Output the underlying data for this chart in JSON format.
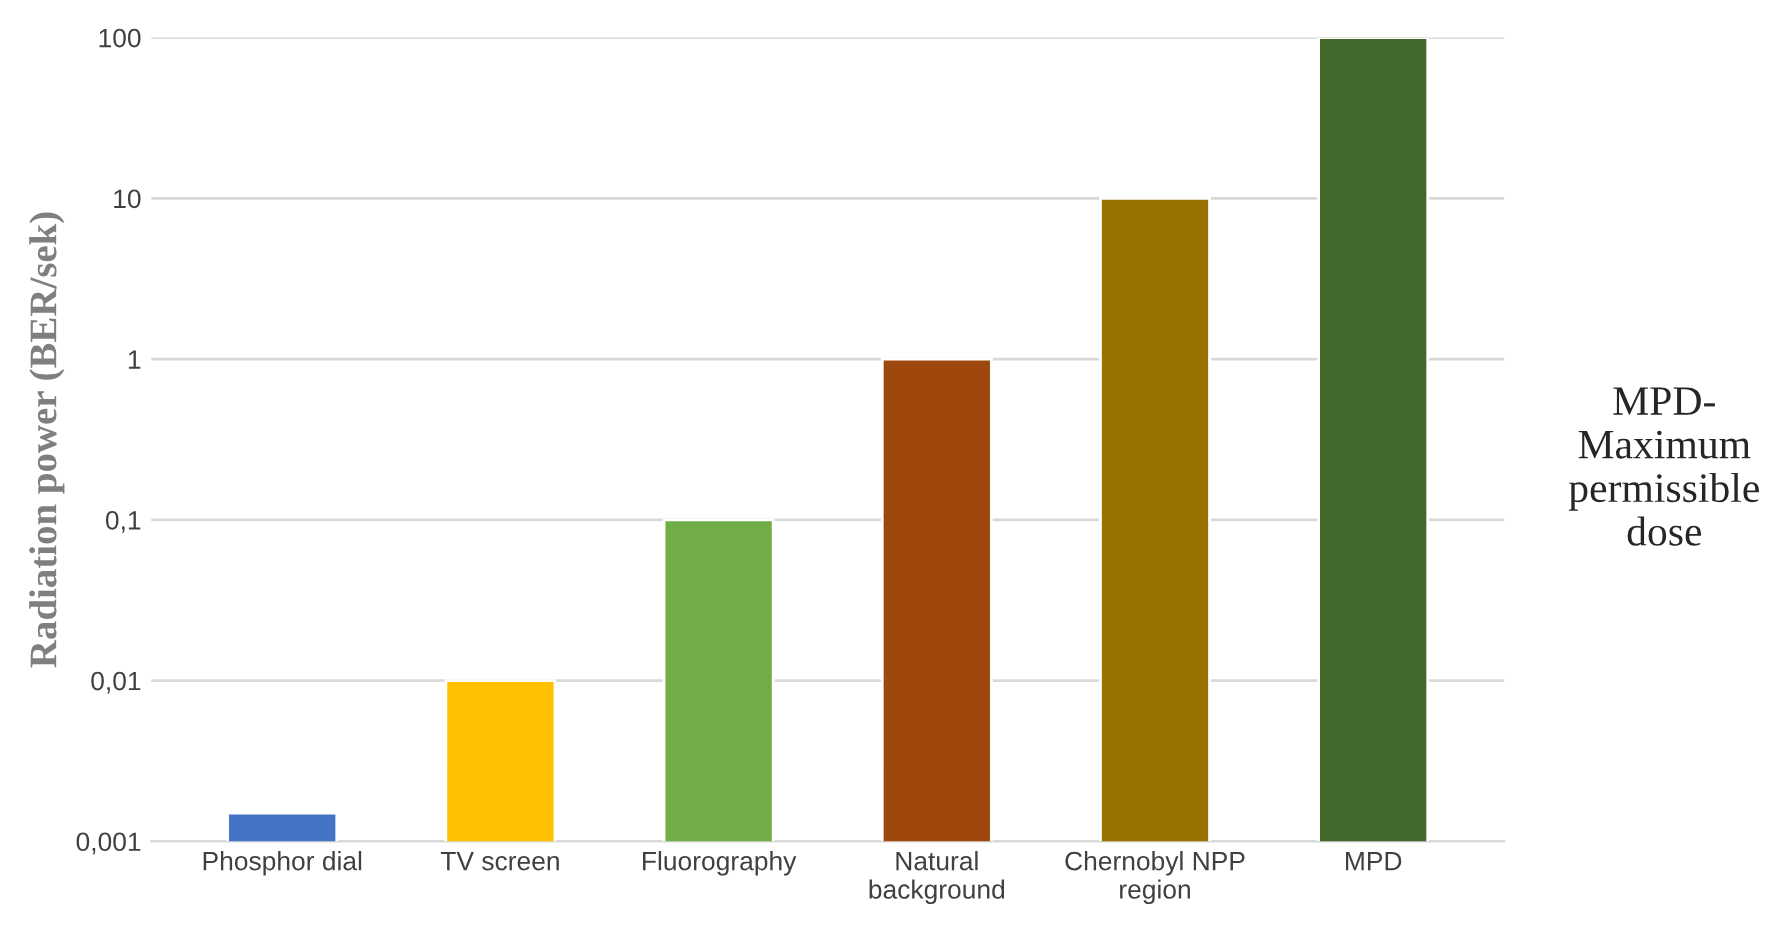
{
  "chart_data": {
    "type": "bar",
    "ylabel": "Radiation power (BER/sek)",
    "categories": [
      "Phosphor dial",
      "TV screen",
      "Fluorography",
      "Natural\nbackground",
      "Chernobyl NPP\nregion",
      "MPD"
    ],
    "values": [
      0.0015,
      0.01,
      0.1,
      1,
      10,
      100
    ],
    "colors": [
      "#4472c4",
      "#ffc000",
      "#70ad47",
      "#9e480e",
      "#997300",
      "#43682b"
    ],
    "log": "y",
    "ylim": [
      0.001,
      100
    ],
    "yticks": [
      {
        "value": 0.001,
        "label": "0,001"
      },
      {
        "value": 0.01,
        "label": "0,01"
      },
      {
        "value": 0.1,
        "label": "0,1"
      },
      1,
      10,
      100
    ],
    "grid": "y",
    "annotations": [
      "MPD-\nMaximum\npermissible\ndose"
    ]
  }
}
